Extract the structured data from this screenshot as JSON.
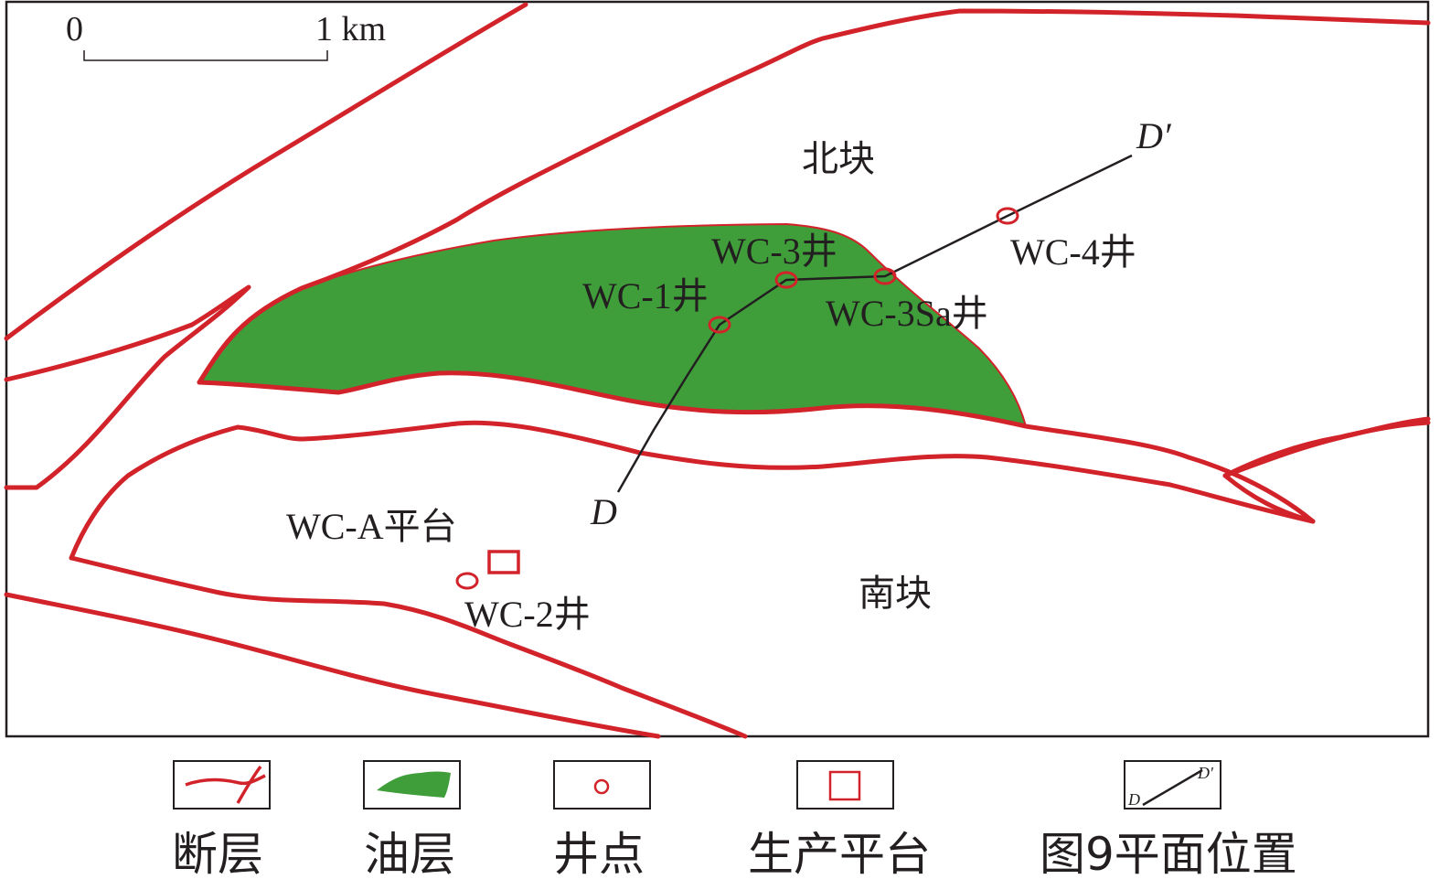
{
  "scale_bar": {
    "start_label": "0",
    "end_label": "1 km"
  },
  "blocks": {
    "north": "北块",
    "south": "南块"
  },
  "wells": [
    {
      "id": "wc1",
      "label": "WC-1井"
    },
    {
      "id": "wc2",
      "label": "WC-2井"
    },
    {
      "id": "wc3",
      "label": "WC-3井"
    },
    {
      "id": "wc3sa",
      "label": "WC-3Sa井"
    },
    {
      "id": "wc4",
      "label": "WC-4井"
    }
  ],
  "platform": {
    "label": "WC-A平台"
  },
  "section_line": {
    "start_label": "D",
    "end_label": "D′"
  },
  "legend": {
    "fault": "断层",
    "oil_layer": "油层",
    "well_point": "井点",
    "platform": "生产平台",
    "section": "图9平面位置",
    "section_start": "D",
    "section_end": "D′"
  },
  "colors": {
    "fault": "#d2232a",
    "oil_layer": "#3f9e3a",
    "well": "#d2232a",
    "section_line": "#231f20",
    "frame": "#231f20"
  }
}
